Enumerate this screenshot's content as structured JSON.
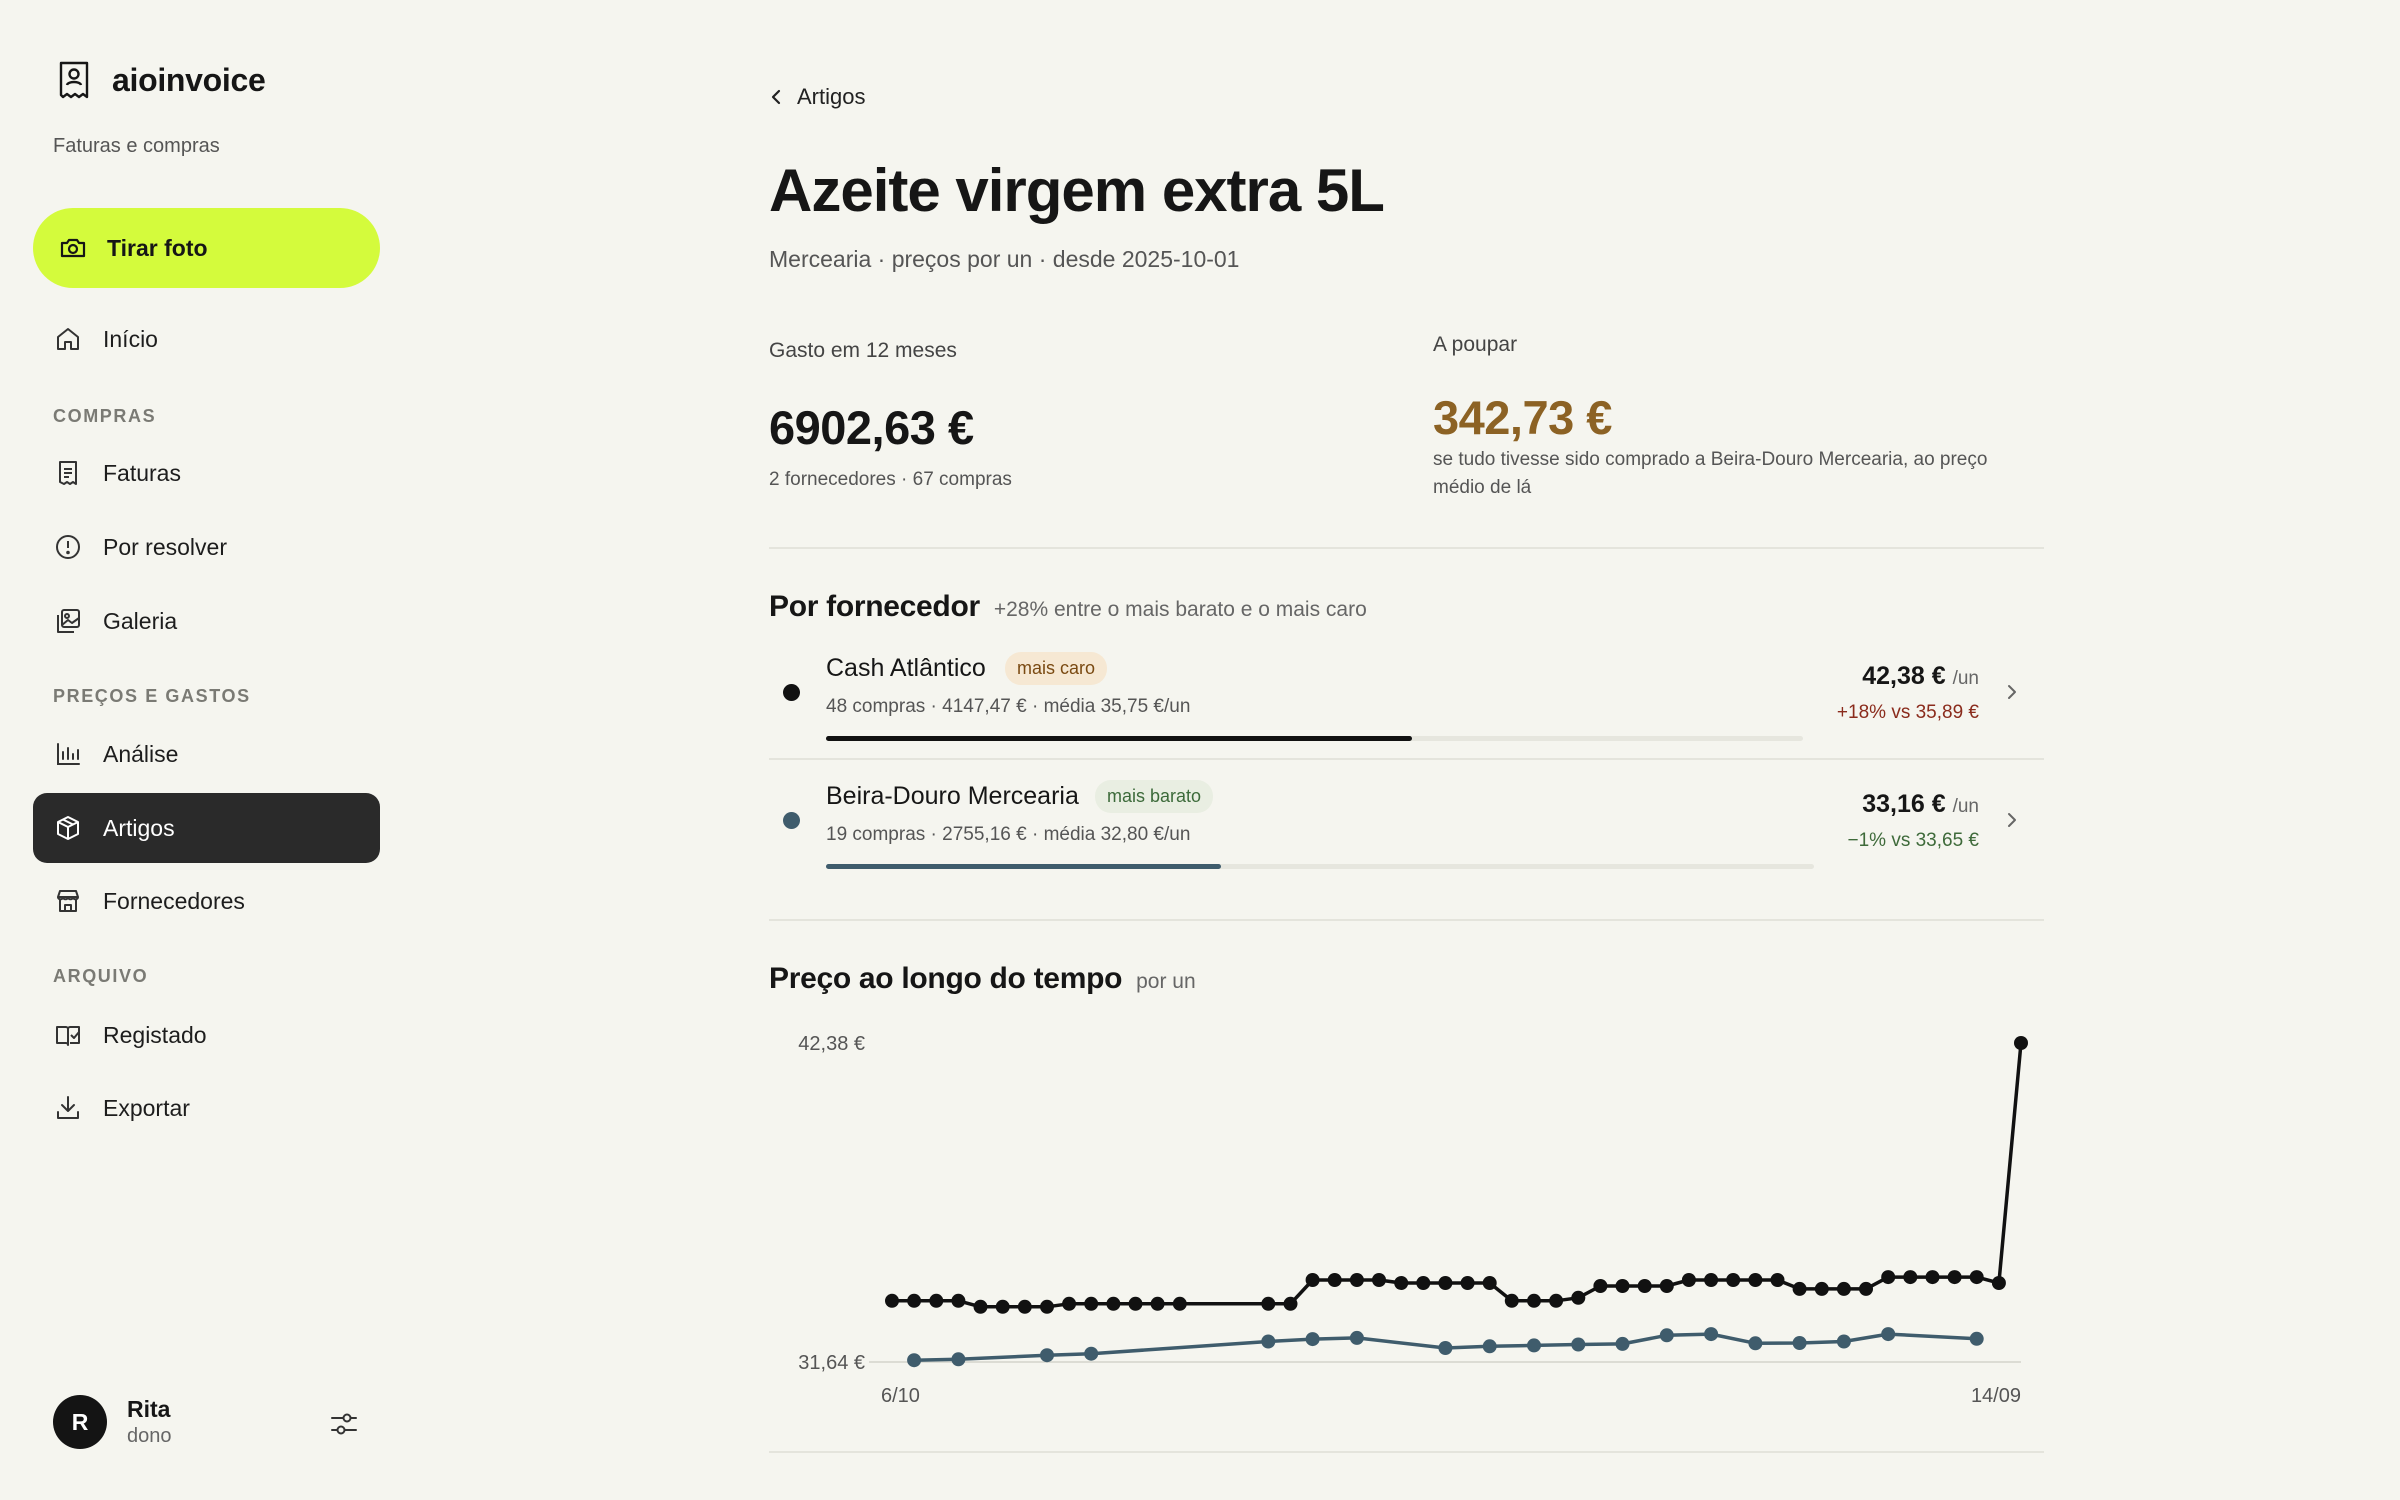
{
  "app": {
    "name": "aioinvoice",
    "tagline": "Faturas e compras"
  },
  "sidebar": {
    "cta_label": "Tirar foto",
    "home_label": "Início",
    "sections": [
      {
        "label": "COMPRAS",
        "items": [
          "Faturas",
          "Por resolver",
          "Galeria"
        ]
      },
      {
        "label": "PREÇOS E GASTOS",
        "items": [
          "Análise",
          "Artigos",
          "Fornecedores"
        ]
      },
      {
        "label": "ARQUIVO",
        "items": [
          "Registado",
          "Exportar"
        ]
      }
    ],
    "active_item": "Artigos"
  },
  "user": {
    "initial": "R",
    "name": "Rita",
    "role": "dono"
  },
  "page": {
    "back_label": "Artigos",
    "title": "Azeite virgem extra 5L",
    "subtitle": "Mercearia · preços por un · desde 2025-10-01"
  },
  "stats": {
    "spent_label": "Gasto em 12 meses",
    "spent_value": "6902,63 €",
    "spent_note": "2 fornecedores · 67 compras",
    "save_label": "A poupar",
    "save_value": "342,73 €",
    "save_note": "se tudo tivesse sido comprado a Beira-Douro Mercearia, ao preço médio de lá"
  },
  "suppliers_section": {
    "title": "Por fornecedor",
    "note": "+28% entre o mais barato e o mais caro",
    "rows": [
      {
        "name": "Cash Atlântico",
        "badge": "mais caro",
        "meta": "48 compras · 4147,47 € · média 35,75 €/un",
        "price": "42,38 €",
        "unit": "/un",
        "delta": "+18% vs 35,89 €",
        "share": 0.6,
        "color": "#111111"
      },
      {
        "name": "Beira-Douro Mercearia",
        "badge": "mais barato",
        "meta": "19 compras · 2755,16 € · média 32,80 €/un",
        "price": "33,16 €",
        "unit": "/un",
        "delta": "−1% vs 33,65 €",
        "share": 0.4,
        "color": "#3f5c6c"
      }
    ]
  },
  "chart_section": {
    "title": "Preço ao longo do tempo",
    "note": "por un"
  },
  "chart_data": {
    "type": "line",
    "ytick_labels": [
      "42,38 €",
      "31,64 €"
    ],
    "ylim": [
      31.64,
      42.38
    ],
    "xtick_labels": [
      "6/10",
      "14/09"
    ],
    "grid": false,
    "series": [
      {
        "name": "Cash Atlântico",
        "color": "#111111",
        "points": [
          [
            0,
            33.7
          ],
          [
            1,
            33.7
          ],
          [
            2,
            33.7
          ],
          [
            3,
            33.7
          ],
          [
            4,
            33.5
          ],
          [
            5,
            33.5
          ],
          [
            6,
            33.5
          ],
          [
            7,
            33.5
          ],
          [
            8,
            33.6
          ],
          [
            9,
            33.6
          ],
          [
            10,
            33.6
          ],
          [
            11,
            33.6
          ],
          [
            12,
            33.6
          ],
          [
            13,
            33.6
          ],
          [
            17,
            33.6
          ],
          [
            18,
            33.6
          ],
          [
            19,
            34.4
          ],
          [
            20,
            34.4
          ],
          [
            21,
            34.4
          ],
          [
            22,
            34.4
          ],
          [
            23,
            34.3
          ],
          [
            24,
            34.3
          ],
          [
            25,
            34.3
          ],
          [
            26,
            34.3
          ],
          [
            27,
            34.3
          ],
          [
            28,
            33.7
          ],
          [
            29,
            33.7
          ],
          [
            30,
            33.7
          ],
          [
            31,
            33.8
          ],
          [
            32,
            34.2
          ],
          [
            33,
            34.2
          ],
          [
            34,
            34.2
          ],
          [
            35,
            34.2
          ],
          [
            36,
            34.4
          ],
          [
            37,
            34.4
          ],
          [
            38,
            34.4
          ],
          [
            39,
            34.4
          ],
          [
            40,
            34.4
          ],
          [
            41,
            34.1
          ],
          [
            42,
            34.1
          ],
          [
            43,
            34.1
          ],
          [
            44,
            34.1
          ],
          [
            45,
            34.5
          ],
          [
            46,
            34.5
          ],
          [
            47,
            34.5
          ],
          [
            48,
            34.5
          ],
          [
            49,
            34.5
          ],
          [
            50,
            34.3
          ],
          [
            51,
            42.38
          ]
        ]
      },
      {
        "name": "Beira-Douro Mercearia",
        "color": "#3f5c6c",
        "points": [
          [
            1,
            31.7
          ],
          [
            3,
            31.73
          ],
          [
            7,
            31.87
          ],
          [
            9,
            31.92
          ],
          [
            17,
            32.33
          ],
          [
            19,
            32.41
          ],
          [
            21,
            32.45
          ],
          [
            25,
            32.11
          ],
          [
            27,
            32.17
          ],
          [
            29,
            32.2
          ],
          [
            31,
            32.23
          ],
          [
            33,
            32.25
          ],
          [
            35,
            32.54
          ],
          [
            37,
            32.58
          ],
          [
            39,
            32.27
          ],
          [
            41,
            32.28
          ],
          [
            43,
            32.33
          ],
          [
            45,
            32.58
          ],
          [
            49,
            32.42
          ]
        ]
      }
    ]
  }
}
